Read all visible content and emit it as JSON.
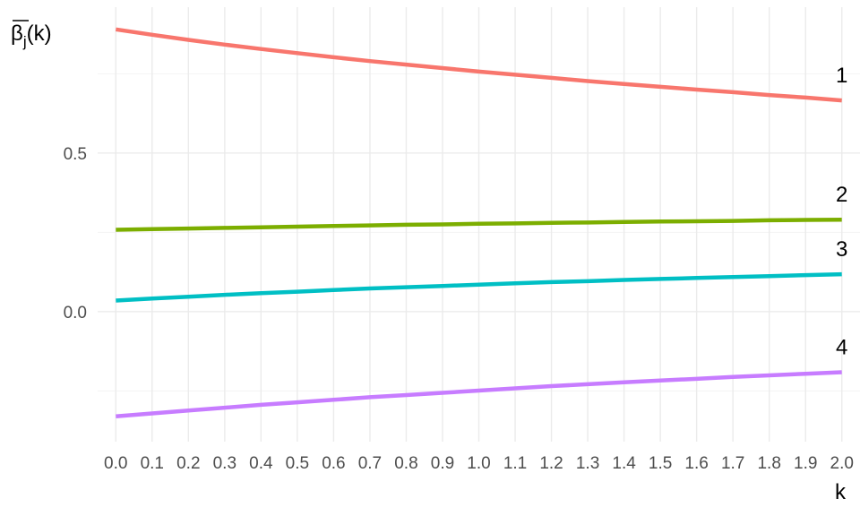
{
  "chart_data": {
    "type": "line",
    "title": "",
    "xlabel": "k",
    "ylabel": {
      "beta": "β",
      "subscript": "j",
      "arg": "(k)"
    },
    "x": [
      0.0,
      0.1,
      0.2,
      0.3,
      0.4,
      0.5,
      0.6,
      0.7,
      0.8,
      0.9,
      1.0,
      1.1,
      1.2,
      1.3,
      1.4,
      1.5,
      1.6,
      1.7,
      1.8,
      1.9,
      2.0
    ],
    "x_tick_labels": [
      "0.0",
      "0.1",
      "0.2",
      "0.3",
      "0.4",
      "0.5",
      "0.6",
      "0.7",
      "0.8",
      "0.9",
      "1.0",
      "1.1",
      "1.2",
      "1.3",
      "1.4",
      "1.5",
      "1.6",
      "1.7",
      "1.8",
      "1.9",
      "2.0"
    ],
    "y_ticks": [
      0.0,
      0.5
    ],
    "y_tick_labels": [
      "0.0",
      "0.5"
    ],
    "xlim": [
      -0.05,
      2.05
    ],
    "ylim": [
      -0.41,
      0.96
    ],
    "grid": true,
    "legend": "none",
    "series": [
      {
        "name": "1",
        "color": "#F8766D",
        "values": [
          0.89,
          0.873,
          0.857,
          0.842,
          0.828,
          0.815,
          0.802,
          0.79,
          0.779,
          0.768,
          0.757,
          0.747,
          0.737,
          0.727,
          0.718,
          0.709,
          0.7,
          0.692,
          0.683,
          0.675,
          0.666
        ]
      },
      {
        "name": "2",
        "color": "#7CAE00",
        "values": [
          0.258,
          0.26,
          0.262,
          0.264,
          0.266,
          0.268,
          0.27,
          0.272,
          0.274,
          0.275,
          0.277,
          0.278,
          0.28,
          0.281,
          0.283,
          0.284,
          0.285,
          0.286,
          0.288,
          0.289,
          0.29
        ]
      },
      {
        "name": "3",
        "color": "#00BFC4",
        "values": [
          0.035,
          0.041,
          0.047,
          0.053,
          0.058,
          0.063,
          0.068,
          0.073,
          0.077,
          0.081,
          0.085,
          0.089,
          0.093,
          0.096,
          0.1,
          0.103,
          0.106,
          0.109,
          0.112,
          0.115,
          0.118
        ]
      },
      {
        "name": "4",
        "color": "#C77CFF",
        "values": [
          -0.33,
          -0.321,
          -0.312,
          -0.303,
          -0.294,
          -0.286,
          -0.278,
          -0.27,
          -0.263,
          -0.256,
          -0.249,
          -0.242,
          -0.235,
          -0.229,
          -0.223,
          -0.217,
          -0.212,
          -0.206,
          -0.201,
          -0.196,
          -0.191
        ]
      }
    ]
  }
}
